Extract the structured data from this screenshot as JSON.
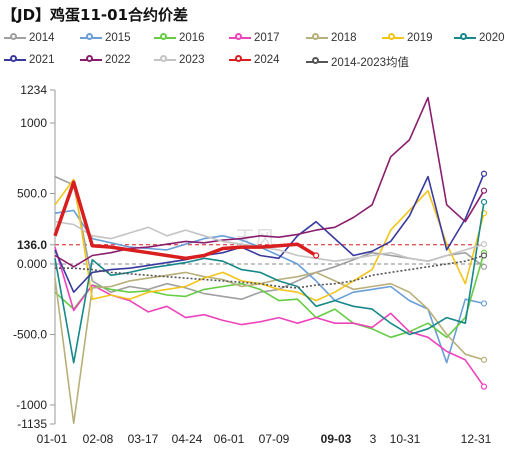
{
  "chart_data": {
    "type": "line",
    "title": "【JD】鸡蛋11-01合约价差",
    "x_ticks": [
      "01-01",
      "02-08",
      "03-17",
      "04-24",
      "06-01",
      "07-09",
      "09-03",
      "3",
      "10-31",
      "12-31"
    ],
    "highlight_x_tick": "09-03",
    "y_ticks": [
      "1234",
      "1000",
      "500.0",
      "136.0",
      "0.000",
      "-500.0",
      "-1000",
      "-1135"
    ],
    "highlight_y_tick": "136.0",
    "ylim": [
      -1135,
      1234
    ],
    "legend_position": "top",
    "watermark": "天风",
    "series": [
      {
        "name": "2014",
        "color": "#a0a0a0",
        "values": [
          620,
          560,
          -120,
          -200,
          -160,
          -180,
          -140,
          -170,
          -210,
          -230,
          -250,
          -200,
          -180,
          -120,
          -60,
          -20,
          30,
          80,
          60,
          40,
          20,
          60,
          80,
          -20
        ]
      },
      {
        "name": "2015",
        "color": "#6a9fd8",
        "values": [
          360,
          380,
          180,
          150,
          120,
          110,
          100,
          140,
          180,
          200,
          170,
          120,
          60,
          0,
          -120,
          -260,
          -200,
          -180,
          -160,
          -260,
          -320,
          -700,
          -250,
          -280
        ]
      },
      {
        "name": "2016",
        "color": "#66cc44",
        "values": [
          -200,
          -320,
          -150,
          -180,
          -200,
          -190,
          -220,
          -230,
          -180,
          -160,
          -140,
          -180,
          -260,
          -250,
          -380,
          -320,
          -420,
          -460,
          -520,
          -480,
          -420,
          -520,
          -380,
          80
        ]
      },
      {
        "name": "2017",
        "color": "#ee44bb",
        "values": [
          120,
          -330,
          -150,
          -220,
          -260,
          -340,
          -300,
          -380,
          -360,
          -400,
          -430,
          -410,
          -380,
          -420,
          -380,
          -420,
          -420,
          -450,
          -350,
          -480,
          -520,
          -620,
          -680,
          -870
        ]
      },
      {
        "name": "2018",
        "color": "#b8b07a",
        "values": [
          -100,
          -1130,
          -170,
          -160,
          -120,
          -100,
          -80,
          -60,
          -90,
          -110,
          -160,
          -140,
          -110,
          -90,
          -60,
          -120,
          -180,
          -160,
          -140,
          -200,
          -320,
          -500,
          -640,
          -680
        ]
      },
      {
        "name": "2019",
        "color": "#f3c51a",
        "values": [
          420,
          600,
          -250,
          -220,
          -250,
          -200,
          -180,
          -160,
          -100,
          -60,
          -120,
          -140,
          -180,
          -200,
          -260,
          -200,
          -120,
          -40,
          240,
          380,
          520,
          140,
          -140,
          360
        ]
      },
      {
        "name": "2020",
        "color": "#18888a",
        "values": [
          40,
          -700,
          30,
          -80,
          -60,
          -30,
          -10,
          10,
          40,
          20,
          -40,
          -60,
          -120,
          -160,
          -300,
          -260,
          -300,
          -320,
          -420,
          -500,
          -460,
          -380,
          -420,
          440
        ]
      },
      {
        "name": "2021",
        "color": "#3a3a9e",
        "values": [
          100,
          -200,
          -60,
          -40,
          -30,
          -10,
          10,
          30,
          60,
          80,
          120,
          60,
          40,
          200,
          300,
          180,
          60,
          90,
          160,
          340,
          620,
          100,
          320,
          640
        ]
      },
      {
        "name": "2022",
        "color": "#8a1e6e",
        "values": [
          60,
          -20,
          60,
          80,
          110,
          120,
          140,
          160,
          150,
          170,
          180,
          200,
          190,
          210,
          240,
          260,
          330,
          420,
          760,
          880,
          1180,
          420,
          300,
          520
        ]
      },
      {
        "name": "2023",
        "color": "#c4c4c4",
        "values": [
          300,
          280,
          200,
          180,
          220,
          260,
          200,
          240,
          200,
          160,
          140,
          120,
          100,
          60,
          40,
          20,
          40,
          60,
          80,
          40,
          20,
          60,
          100,
          140
        ]
      },
      {
        "name": "2024",
        "color": "#d81e1e",
        "values": [
          200,
          580,
          130,
          120,
          100,
          80,
          60,
          40,
          60,
          110,
          120,
          120,
          130,
          140,
          60,
          null,
          null,
          null,
          null,
          null,
          null,
          null,
          null,
          null
        ]
      },
      {
        "name": "2014-2023均值",
        "color": "#555555",
        "values": [
          -30,
          -30,
          -40,
          -60,
          -70,
          -80,
          -90,
          -100,
          -110,
          -120,
          -130,
          -140,
          -160,
          -170,
          -150,
          -140,
          -120,
          -80,
          -60,
          -40,
          -20,
          0,
          20,
          60
        ]
      }
    ]
  }
}
